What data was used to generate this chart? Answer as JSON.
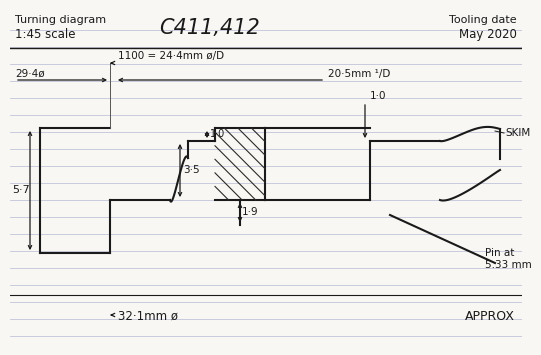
{
  "title": "C411,412",
  "subtitle_left": "Turning diagram",
  "subtitle_scale": "1:45 scale",
  "subtitle_right1": "Tooling date",
  "subtitle_right2": "May 2020",
  "footer_left": "→4  32·1mm ø",
  "footer_right": "APPROX",
  "dim1_text": "1100 = 24·4mm ø/D",
  "dim2_text": "29·4ø",
  "dim3_text": "20·5mm ¹/D",
  "dim4_text": "1·0",
  "dim5_text": "1·0",
  "dim6_text": "3·5",
  "dim7_text": "1·9",
  "dim8_text": "5·7",
  "label_skim": "SKIM",
  "label_pin": "Pin at\n5.33 mm",
  "bg_color": "#f8f7f3",
  "line_color": "#1a1a1a",
  "hatch_color": "#2a2a2a",
  "ruled_line_color": "#c0c4d8"
}
